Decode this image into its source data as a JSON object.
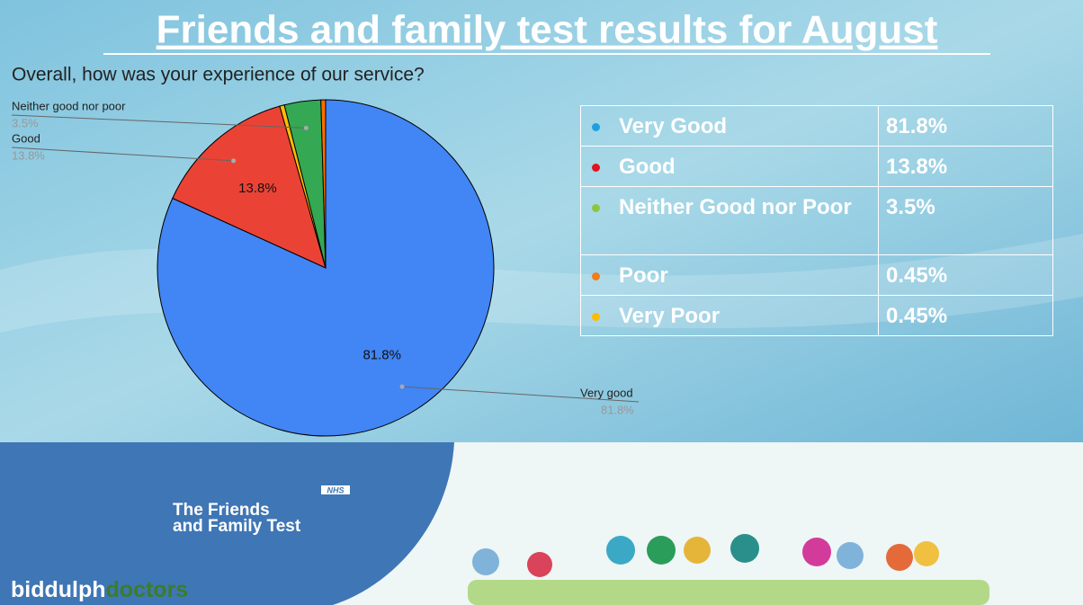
{
  "heading": "Friends and family test results for August",
  "chart_data": {
    "type": "pie",
    "title": "Overall, how was your experience of our service?",
    "categories": [
      "Very good",
      "Good",
      null,
      "Neither good nor poor",
      null
    ],
    "values": [
      81.8,
      13.8,
      0.45,
      3.5,
      0.45
    ],
    "value_labels": [
      "81.8%",
      "13.8%",
      null,
      "3.5%",
      null
    ],
    "colors": [
      "#4285f4",
      "#ea4335",
      "#fbbc04",
      "#34a853",
      "#ff6d01"
    ]
  },
  "table": {
    "rows": [
      [
        "Very Good",
        "81.8%"
      ],
      [
        "Good",
        "13.8%"
      ],
      [
        "Neither Good nor Poor",
        "3.5%"
      ],
      [
        "Poor",
        "0.45%"
      ],
      [
        "Very Poor",
        "0.45%"
      ]
    ],
    "bullet_colors": [
      "#1ca0e0",
      "#e0141e",
      "#8cc63f",
      "#f07d1e",
      "#fbbc04"
    ]
  },
  "footer": {
    "badge": "NHS",
    "title_lines": [
      "The Friends",
      "and Family Test"
    ],
    "brand": [
      "biddulph",
      "doctors"
    ]
  }
}
